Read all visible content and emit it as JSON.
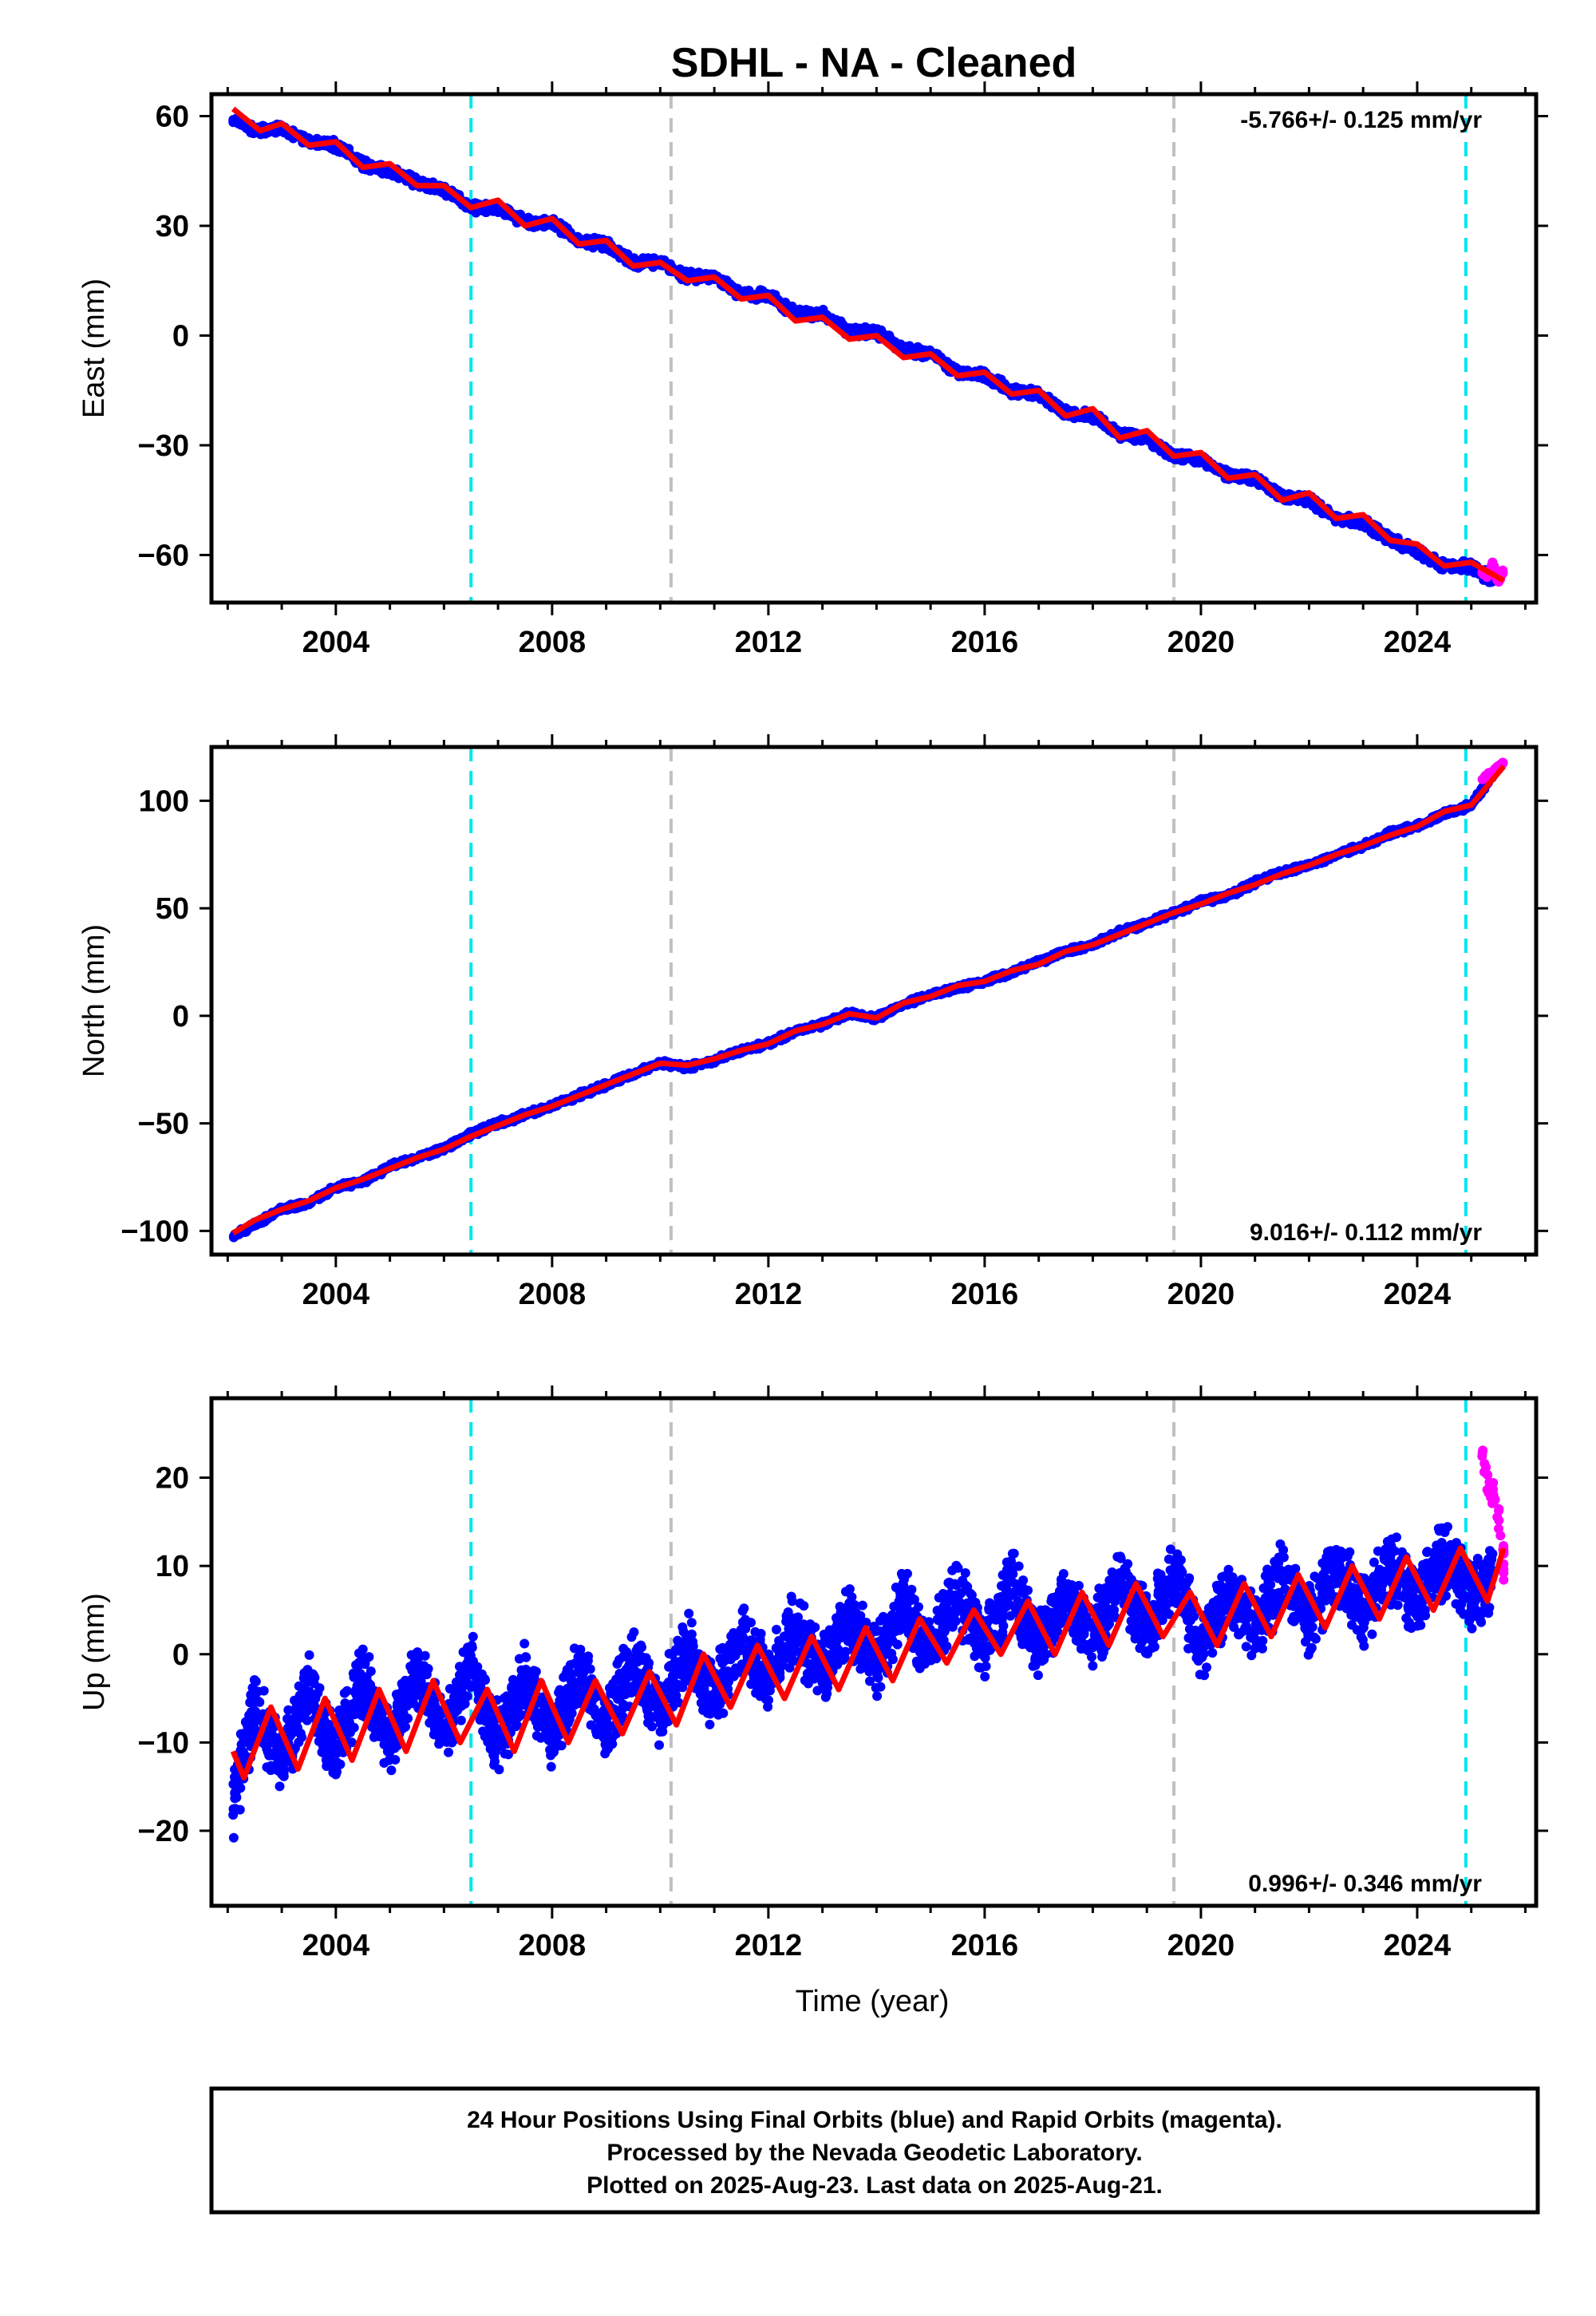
{
  "title": "SDHL  - NA - Cleaned",
  "colors": {
    "final": "#0000ff",
    "rapid": "#ff00ff",
    "model": "#ff0000",
    "equipment_change": "#00e5ee",
    "other_event": "#c0c0c0"
  },
  "chart_data": [
    {
      "type": "scatter",
      "component": "East",
      "ylabel": "East (mm)",
      "rate_label": "-5.766+/- 0.125 mm/yr",
      "rate_position": "top-right",
      "xlim": [
        2001.7,
        2026.2
      ],
      "ylim": [
        -73,
        66
      ],
      "yticks": [
        -60,
        -30,
        0,
        30,
        60
      ],
      "xticks": [
        2004,
        2008,
        2012,
        2016,
        2020,
        2024
      ],
      "series": [
        {
          "color": "#0000ff",
          "x": [
            2002.1,
            2002.5,
            2003.0,
            2003.5,
            2004.0,
            2004.5,
            2005.0,
            2005.5,
            2006.0,
            2006.5,
            2007.0,
            2007.5,
            2008.0,
            2008.5,
            2009.0,
            2009.5,
            2010.0,
            2010.5,
            2011.0,
            2011.5,
            2012.0,
            2012.5,
            2013.0,
            2013.5,
            2014.0,
            2014.5,
            2015.0,
            2015.5,
            2016.0,
            2016.5,
            2017.0,
            2017.5,
            2018.0,
            2018.5,
            2019.0,
            2019.5,
            2020.0,
            2020.5,
            2021.0,
            2021.5,
            2022.0,
            2022.5,
            2023.0,
            2023.5,
            2024.0,
            2024.5,
            2025.0,
            2025.4
          ],
          "y": [
            59,
            56,
            57,
            53,
            52,
            47,
            45,
            42,
            40,
            35,
            35,
            31,
            31,
            26,
            25,
            20,
            20,
            16,
            16,
            11,
            11,
            6,
            6,
            1,
            1,
            -4,
            -5,
            -10,
            -11,
            -15,
            -16,
            -21,
            -22,
            -27,
            -28,
            -33,
            -34,
            -38,
            -39,
            -44,
            -45,
            -50,
            -51,
            -56,
            -59,
            -63,
            -63,
            -67
          ]
        },
        {
          "color": "#ff00ff",
          "x": [
            2025.2,
            2025.3,
            2025.4,
            2025.5,
            2025.6
          ],
          "y": [
            -65,
            -66,
            -62,
            -68,
            -64
          ]
        }
      ],
      "model": {
        "x": [
          2002.1,
          2002.6,
          2003.0,
          2003.5,
          2004.0,
          2004.5,
          2005.0,
          2005.5,
          2006.0,
          2006.5,
          2007.0,
          2007.5,
          2008.0,
          2008.5,
          2009.0,
          2009.5,
          2010.0,
          2010.5,
          2011.0,
          2011.5,
          2012.0,
          2012.5,
          2013.0,
          2013.5,
          2014.0,
          2014.5,
          2015.0,
          2015.5,
          2016.0,
          2016.5,
          2017.0,
          2017.5,
          2018.0,
          2018.5,
          2019.0,
          2019.5,
          2020.0,
          2020.5,
          2021.0,
          2021.5,
          2022.0,
          2022.5,
          2023.0,
          2023.5,
          2024.0,
          2024.5,
          2025.0,
          2025.6
        ],
        "y": [
          62,
          56,
          58,
          52,
          53,
          46,
          47,
          41,
          41,
          35,
          37,
          30,
          32,
          25,
          26,
          19,
          20,
          15,
          16,
          10,
          11,
          4,
          5,
          -1,
          0,
          -6,
          -5,
          -11,
          -10,
          -16,
          -15,
          -22,
          -20,
          -28,
          -26,
          -33,
          -32,
          -39,
          -38,
          -45,
          -43,
          -50,
          -49,
          -56,
          -57,
          -63,
          -62,
          -67
        ]
      }
    },
    {
      "type": "scatter",
      "component": "North",
      "ylabel": "North (mm)",
      "rate_label": "9.016+/- 0.112 mm/yr",
      "rate_position": "bottom-right",
      "xlim": [
        2001.7,
        2026.2
      ],
      "ylim": [
        -111,
        125
      ],
      "yticks": [
        -100,
        -50,
        0,
        50,
        100
      ],
      "xticks": [
        2004,
        2008,
        2012,
        2016,
        2020,
        2024
      ],
      "series": [
        {
          "color": "#0000ff",
          "x": [
            2002.1,
            2002.5,
            2003.0,
            2003.5,
            2004.0,
            2004.5,
            2005.0,
            2005.5,
            2006.0,
            2006.5,
            2007.0,
            2007.5,
            2008.0,
            2008.5,
            2009.0,
            2009.5,
            2010.0,
            2010.5,
            2011.0,
            2011.5,
            2012.0,
            2012.5,
            2013.0,
            2013.5,
            2014.0,
            2014.5,
            2015.0,
            2015.5,
            2016.0,
            2016.5,
            2017.0,
            2017.5,
            2018.0,
            2018.5,
            2019.0,
            2019.5,
            2020.0,
            2020.5,
            2021.0,
            2021.5,
            2022.0,
            2022.5,
            2023.0,
            2023.5,
            2024.0,
            2024.5,
            2025.0,
            2025.4
          ],
          "y": [
            -102,
            -97,
            -90,
            -87,
            -80,
            -77,
            -70,
            -66,
            -62,
            -55,
            -50,
            -46,
            -42,
            -37,
            -32,
            -27,
            -22,
            -24,
            -21,
            -16,
            -13,
            -7,
            -4,
            1,
            -1,
            5,
            10,
            13,
            16,
            20,
            25,
            30,
            33,
            39,
            43,
            48,
            53,
            56,
            62,
            67,
            70,
            75,
            79,
            85,
            88,
            94,
            98,
            112
          ]
        },
        {
          "color": "#ff00ff",
          "x": [
            2025.2,
            2025.3,
            2025.4,
            2025.5,
            2025.6
          ],
          "y": [
            110,
            112,
            114,
            116,
            118
          ]
        }
      ],
      "model": {
        "x": [
          2002.1,
          2002.5,
          2003.0,
          2003.5,
          2004.0,
          2004.5,
          2005.0,
          2005.5,
          2006.0,
          2006.5,
          2007.0,
          2007.5,
          2008.0,
          2008.5,
          2009.0,
          2009.5,
          2010.0,
          2010.5,
          2011.0,
          2011.5,
          2012.0,
          2012.5,
          2013.0,
          2013.5,
          2014.0,
          2014.5,
          2015.0,
          2015.5,
          2016.0,
          2016.5,
          2017.0,
          2017.5,
          2018.0,
          2018.5,
          2019.0,
          2019.5,
          2020.0,
          2020.5,
          2021.0,
          2021.5,
          2022.0,
          2022.5,
          2023.0,
          2023.5,
          2024.0,
          2024.5,
          2025.0,
          2025.6
        ],
        "y": [
          -101,
          -95,
          -90,
          -86,
          -80,
          -76,
          -71,
          -66,
          -62,
          -56,
          -51,
          -46,
          -42,
          -37,
          -32,
          -27,
          -22,
          -23,
          -20,
          -16,
          -13,
          -7,
          -4,
          1,
          -1,
          6,
          9,
          14,
          16,
          21,
          24,
          30,
          33,
          38,
          43,
          48,
          52,
          57,
          61,
          66,
          70,
          75,
          79,
          84,
          88,
          95,
          98,
          116
        ]
      }
    },
    {
      "type": "scatter",
      "component": "Up",
      "ylabel": "Up (mm)",
      "xlabel": "Time (year)",
      "rate_label": "0.996+/- 0.346 mm/yr",
      "rate_position": "bottom-right",
      "xlim": [
        2001.7,
        2026.2
      ],
      "ylim": [
        -28.5,
        29
      ],
      "yticks": [
        -20,
        -10,
        0,
        10,
        20
      ],
      "xticks": [
        2004,
        2008,
        2012,
        2016,
        2020,
        2024
      ],
      "series": [
        {
          "color": "#0000ff",
          "x": [
            2002.1,
            2002.5,
            2003.0,
            2003.5,
            2004.0,
            2004.5,
            2005.0,
            2005.5,
            2006.0,
            2006.5,
            2007.0,
            2007.5,
            2008.0,
            2008.5,
            2009.0,
            2009.5,
            2010.0,
            2010.5,
            2011.0,
            2011.5,
            2012.0,
            2012.5,
            2013.0,
            2013.5,
            2014.0,
            2014.5,
            2015.0,
            2015.5,
            2016.0,
            2016.5,
            2017.0,
            2017.5,
            2018.0,
            2018.5,
            2019.0,
            2019.5,
            2020.0,
            2020.5,
            2021.0,
            2021.5,
            2022.0,
            2022.5,
            2023.0,
            2023.5,
            2024.0,
            2024.5,
            2025.0,
            2025.4
          ],
          "y": [
            -17,
            -6,
            -12,
            -4,
            -11,
            -3,
            -10,
            -2,
            -9,
            -1,
            -10,
            -3,
            -9,
            -2,
            -8,
            -1,
            -7,
            1,
            -5,
            2,
            -3,
            3,
            -2,
            4,
            -1,
            6,
            0,
            7,
            1,
            8,
            1,
            7,
            2,
            8,
            3,
            9,
            1,
            7,
            3,
            9,
            4,
            10,
            5,
            10,
            6,
            11,
            6,
            9
          ]
        },
        {
          "color": "#ff00ff",
          "x": [
            2025.2,
            2025.3,
            2025.4,
            2025.5,
            2025.6,
            2025.6
          ],
          "y": [
            22,
            20,
            18,
            16,
            12,
            8
          ]
        }
      ],
      "model": {
        "x": [
          2002.1,
          2002.3,
          2002.8,
          2003.3,
          2003.8,
          2004.3,
          2004.8,
          2005.3,
          2005.8,
          2006.3,
          2006.8,
          2007.3,
          2007.8,
          2008.3,
          2008.8,
          2009.3,
          2009.8,
          2010.3,
          2010.8,
          2011.3,
          2011.8,
          2012.3,
          2012.8,
          2013.3,
          2013.8,
          2014.3,
          2014.8,
          2015.3,
          2015.8,
          2016.3,
          2016.8,
          2017.3,
          2017.8,
          2018.3,
          2018.8,
          2019.3,
          2019.8,
          2020.3,
          2020.8,
          2021.3,
          2021.8,
          2022.3,
          2022.8,
          2023.3,
          2023.8,
          2024.3,
          2024.8,
          2025.3,
          2025.6
        ],
        "y": [
          -11,
          -14,
          -6,
          -13,
          -5,
          -12,
          -4,
          -11,
          -3,
          -10,
          -4,
          -11,
          -3,
          -10,
          -3,
          -9,
          -2,
          -8,
          0,
          -6,
          1,
          -5,
          2,
          -4,
          3,
          -3,
          4,
          -1,
          5,
          0,
          6,
          0,
          7,
          1,
          8,
          2,
          7,
          1,
          8,
          2,
          9,
          3,
          10,
          4,
          11,
          5,
          12,
          6,
          12
        ]
      }
    }
  ],
  "event_lines": [
    {
      "x": 2006.5,
      "kind": "equipment_change"
    },
    {
      "x": 2010.2,
      "kind": "other_event"
    },
    {
      "x": 2019.5,
      "kind": "other_event"
    },
    {
      "x": 2024.9,
      "kind": "equipment_change"
    }
  ],
  "footnote": {
    "line1": "24 Hour Positions Using Final Orbits (blue) and Rapid Orbits (magenta).",
    "line2": "Processed by the Nevada Geodetic Laboratory.",
    "line3": "Plotted on 2025-Aug-23. Last data on 2025-Aug-21."
  }
}
